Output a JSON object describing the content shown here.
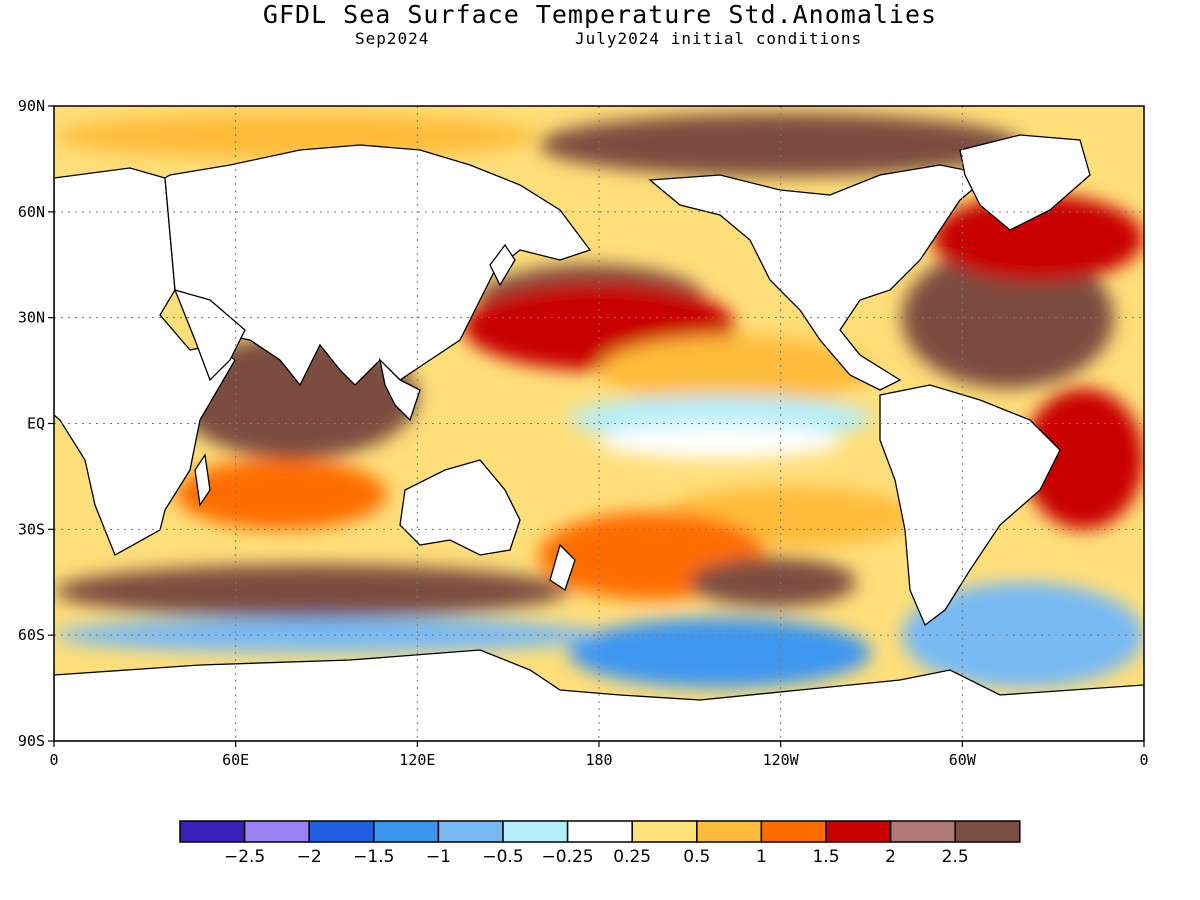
{
  "title": "GFDL Sea Surface Temperature Std.Anomalies",
  "subtitle_left": "Sep2024",
  "subtitle_right": "July2024 initial conditions",
  "lat_ticks": [
    {
      "value": 90,
      "label": "90N"
    },
    {
      "value": 60,
      "label": "60N"
    },
    {
      "value": 30,
      "label": "30N"
    },
    {
      "value": 0,
      "label": "EQ"
    },
    {
      "value": -30,
      "label": "30S"
    },
    {
      "value": -60,
      "label": "60S"
    },
    {
      "value": -90,
      "label": "90S"
    }
  ],
  "lon_ticks": [
    {
      "value": 0,
      "label": "0"
    },
    {
      "value": 60,
      "label": "60E"
    },
    {
      "value": 120,
      "label": "120E"
    },
    {
      "value": 180,
      "label": "180"
    },
    {
      "value": 240,
      "label": "120W"
    },
    {
      "value": 300,
      "label": "60W"
    },
    {
      "value": 360,
      "label": "0"
    }
  ],
  "colorbar": {
    "colors": [
      "#3a20b8",
      "#9c80f5",
      "#1f5fe0",
      "#3c96f0",
      "#78b9f4",
      "#b4eefa",
      "#ffffff",
      "#ffe27a",
      "#ffbc3a",
      "#ff6d00",
      "#c80000",
      "#ae7a73",
      "#7a4e41"
    ],
    "labels": [
      "−2.5",
      "−2",
      "−1.5",
      "−1",
      "−0.5",
      "−0.25",
      "0.25",
      "0.5",
      "1",
      "1.5",
      "2",
      "2.5"
    ]
  },
  "anomaly_regions": [
    {
      "lon": [
        140,
        215
      ],
      "lat": [
        25,
        45
      ],
      "color": "#7a4e41"
    },
    {
      "lon": [
        135,
        225
      ],
      "lat": [
        15,
        40
      ],
      "color": "#c80000"
    },
    {
      "lon": [
        180,
        270
      ],
      "lat": [
        5,
        25
      ],
      "color": "#ffbc3a"
    },
    {
      "lon": [
        170,
        270
      ],
      "lat": [
        -5,
        8
      ],
      "color": "#b4eefa"
    },
    {
      "lon": [
        180,
        260
      ],
      "lat": [
        -10,
        0
      ],
      "color": "#ffffff"
    },
    {
      "lon": [
        200,
        285
      ],
      "lat": [
        -35,
        -18
      ],
      "color": "#ffbc3a"
    },
    {
      "lon": [
        160,
        235
      ],
      "lat": [
        -50,
        -25
      ],
      "color": "#ff6d00"
    },
    {
      "lon": [
        210,
        265
      ],
      "lat": [
        -52,
        -38
      ],
      "color": "#7a4e41"
    },
    {
      "lon": [
        170,
        270
      ],
      "lat": [
        -75,
        -55
      ],
      "color": "#3c96f0"
    },
    {
      "lon": [
        280,
        360
      ],
      "lat": [
        -75,
        -45
      ],
      "color": "#78b9f4"
    },
    {
      "lon": [
        40,
        120
      ],
      "lat": [
        -10,
        25
      ],
      "color": "#7a4e41"
    },
    {
      "lon": [
        40,
        110
      ],
      "lat": [
        -30,
        -10
      ],
      "color": "#ff6d00"
    },
    {
      "lon": [
        0,
        170
      ],
      "lat": [
        -55,
        -40
      ],
      "color": "#7a4e41"
    },
    {
      "lon": [
        0,
        180
      ],
      "lat": [
        -65,
        -55
      ],
      "color": "#78b9f4"
    },
    {
      "lon": [
        280,
        350
      ],
      "lat": [
        10,
        50
      ],
      "color": "#7a4e41"
    },
    {
      "lon": [
        290,
        360
      ],
      "lat": [
        40,
        65
      ],
      "color": "#c80000"
    },
    {
      "lon": [
        320,
        360
      ],
      "lat": [
        -30,
        10
      ],
      "color": "#c80000"
    },
    {
      "lon": [
        160,
        320
      ],
      "lat": [
        70,
        88
      ],
      "color": "#7a4e41"
    },
    {
      "lon": [
        0,
        160
      ],
      "lat": [
        75,
        88
      ],
      "color": "#ffbc3a"
    }
  ]
}
